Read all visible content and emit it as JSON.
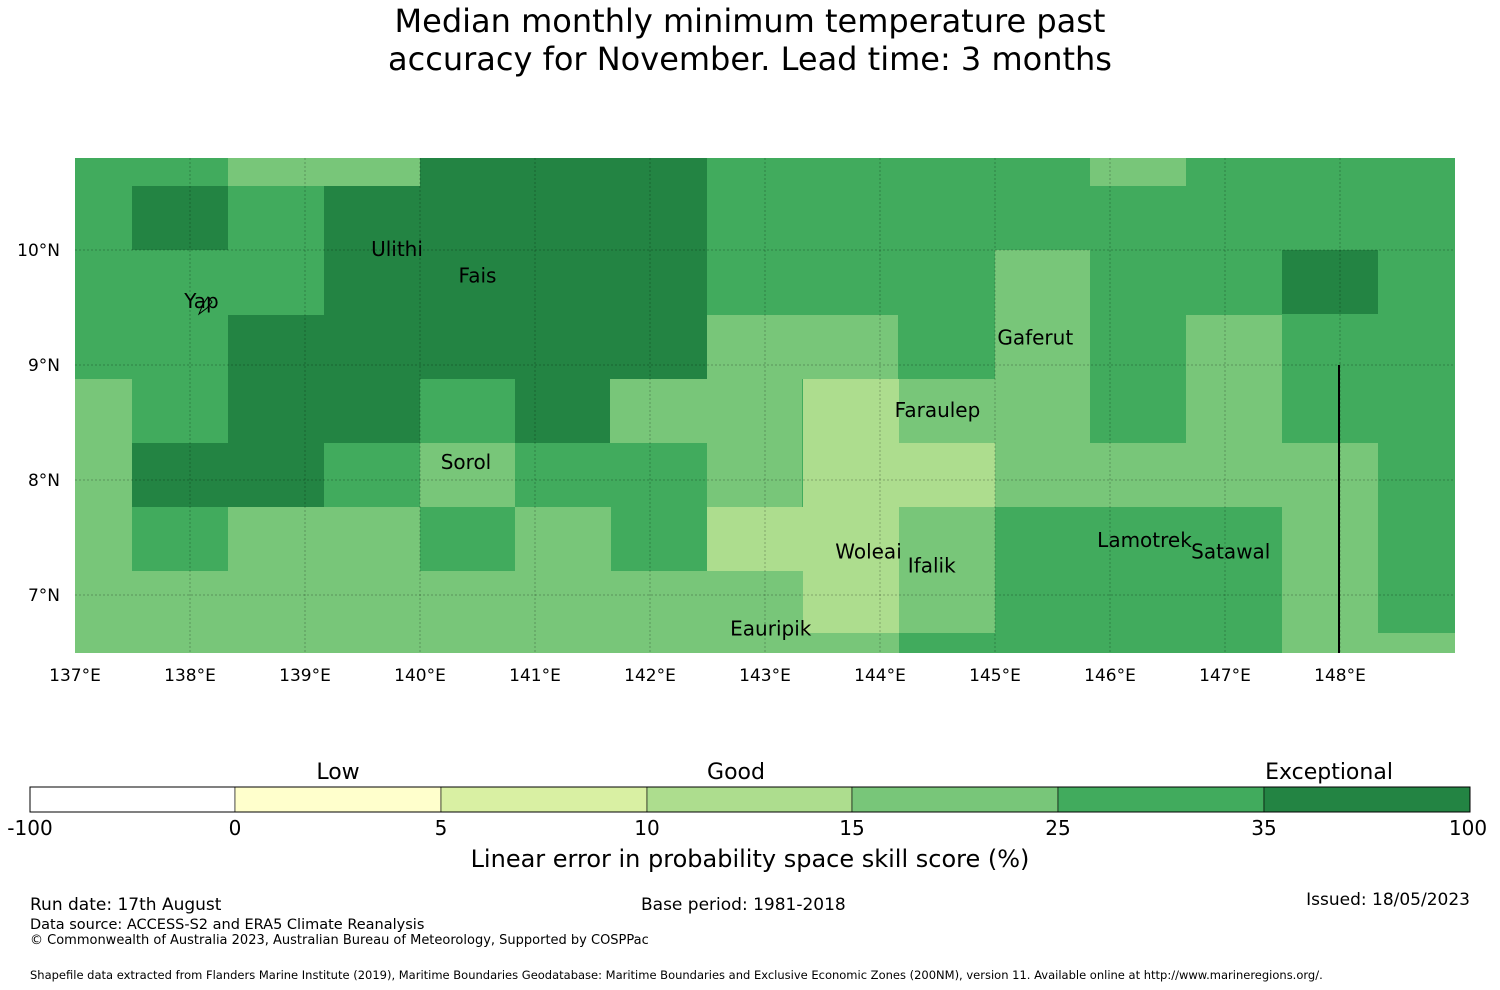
{
  "title_line1": "Median monthly minimum temperature past",
  "title_line2": "accuracy for November. Lead time: 3 months",
  "map": {
    "lon_ticks": [
      "137°E",
      "138°E",
      "139°E",
      "140°E",
      "141°E",
      "142°E",
      "143°E",
      "144°E",
      "145°E",
      "146°E",
      "147°E",
      "148°E"
    ],
    "lat_ticks": [
      "10°N",
      "9°N",
      "8°N",
      "7°N"
    ],
    "places": [
      {
        "name": "Ulithi",
        "lon": 139.8,
        "lat": 10.0
      },
      {
        "name": "Fais",
        "lon": 140.5,
        "lat": 9.77
      },
      {
        "name": "Yap",
        "lon": 138.1,
        "lat": 9.55
      },
      {
        "name": "Gaferut",
        "lon": 145.35,
        "lat": 9.23
      },
      {
        "name": "Faraulep",
        "lon": 144.5,
        "lat": 8.6
      },
      {
        "name": "Sorol",
        "lon": 140.4,
        "lat": 8.15
      },
      {
        "name": "Woleai",
        "lon": 143.9,
        "lat": 7.37
      },
      {
        "name": "Ifalik",
        "lon": 144.45,
        "lat": 7.25
      },
      {
        "name": "Lamotrek",
        "lon": 146.3,
        "lat": 7.47
      },
      {
        "name": "Satawal",
        "lon": 147.05,
        "lat": 7.37
      },
      {
        "name": "Eauripik",
        "lon": 143.05,
        "lat": 6.7
      }
    ]
  },
  "colorbar": {
    "category_labels": [
      "Low",
      "Good",
      "Exceptional"
    ],
    "ticks": [
      "-100",
      "0",
      "5",
      "10",
      "15",
      "25",
      "35",
      "100"
    ],
    "colors": [
      "#ffffff",
      "#ffffcc",
      "#d9f0a3",
      "#addd8e",
      "#78c679",
      "#41ab5d",
      "#238443"
    ],
    "xlabel": "Linear error in probability space skill score (%)"
  },
  "footer": {
    "run_date": "Run date: 17th August",
    "base_period": "Base period: 1981-2018",
    "issued": "Issued: 18/05/2023",
    "data_source": "Data source: ACCESS-S2 and ERA5 Climate Reanalysis",
    "copyright": "© Commonwealth of Australia 2023, Australian Bureau of Meteorology, Supported by COSPPac",
    "shapefile": "Shapefile data extracted from Flanders Marine Institute (2019), Maritime Boundaries Geodatabase: Maritime Boundaries and Exclusive Economic Zones (200NM), version 11. Available online at http://www.marineregions.org/."
  }
}
